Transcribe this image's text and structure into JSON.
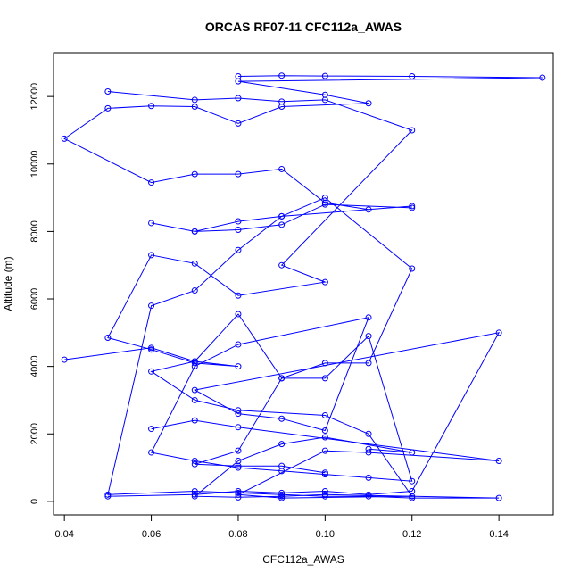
{
  "chart_data": {
    "type": "line",
    "title": "ORCAS RF07-11 CFC112a_AWAS",
    "xlabel": "CFC112a_AWAS",
    "ylabel": "Altitude (m)",
    "xlim": [
      0.0375,
      0.1525
    ],
    "ylim": [
      -400,
      13300
    ],
    "xticks": [
      0.04,
      0.06,
      0.08,
      0.1,
      0.12,
      0.14
    ],
    "xtick_labels": [
      "0.04",
      "0.06",
      "0.08",
      "0.10",
      "0.12",
      "0.14"
    ],
    "yticks": [
      0,
      2000,
      4000,
      6000,
      8000,
      10000,
      12000
    ],
    "ytick_labels": [
      "0",
      "2000",
      "4000",
      "6000",
      "8000",
      "10000",
      "12000"
    ],
    "grid": false,
    "legend": "none",
    "series_color": "#0000ff",
    "series": [
      {
        "x": [
          0.08,
          0.09,
          0.1,
          0.12,
          0.15,
          0.08,
          0.1,
          0.11,
          0.09,
          0.08,
          0.07,
          0.06,
          0.05,
          0.04,
          0.06,
          0.07,
          0.08,
          0.09,
          0.1,
          0.11,
          0.12,
          0.09,
          0.08,
          0.07,
          0.06,
          0.07,
          0.08,
          0.09,
          0.1,
          0.12
        ],
        "y": [
          12600,
          12620,
          12610,
          12600,
          12560,
          12450,
          12050,
          11800,
          11700,
          11200,
          11700,
          11720,
          11650,
          10750,
          9450,
          9700,
          9700,
          9850,
          8850,
          8650,
          8750,
          8450,
          8300,
          8000,
          8250,
          8000,
          8050,
          8200,
          8800,
          8700
        ]
      },
      {
        "x": [
          0.05,
          0.07,
          0.08,
          0.09,
          0.1,
          0.12,
          0.09,
          0.1,
          0.08,
          0.07,
          0.06,
          0.05,
          0.06,
          0.07,
          0.08,
          0.07,
          0.06,
          0.07,
          0.08,
          0.1,
          0.11,
          0.12,
          0.09,
          0.08,
          0.1,
          0.11,
          0.14,
          0.08,
          0.07,
          0.06
        ],
        "y": [
          12150,
          11900,
          11950,
          11850,
          11900,
          11000,
          7000,
          6500,
          6100,
          7050,
          7300,
          4850,
          4500,
          4100,
          4000,
          4150,
          3850,
          3000,
          2700,
          2550,
          2000,
          150,
          100,
          200,
          1500,
          1450,
          1200,
          2200,
          2400,
          2150
        ]
      },
      {
        "x": [
          0.04,
          0.06,
          0.07,
          0.08,
          0.09,
          0.1,
          0.11,
          0.12,
          0.1,
          0.09,
          0.08,
          0.07,
          0.06,
          0.05,
          0.07,
          0.08,
          0.09,
          0.1,
          0.11,
          0.12,
          0.14,
          0.1,
          0.09,
          0.08,
          0.07,
          0.08,
          0.09,
          0.1,
          0.12,
          0.11
        ],
        "y": [
          4200,
          4550,
          4150,
          5550,
          3650,
          4100,
          4100,
          6900,
          9000,
          8450,
          7450,
          6250,
          5800,
          200,
          300,
          250,
          200,
          150,
          150,
          100,
          100,
          200,
          150,
          120,
          150,
          1200,
          1700,
          1900,
          1450,
          1550
        ]
      },
      {
        "x": [
          0.05,
          0.07,
          0.08,
          0.09,
          0.1,
          0.11,
          0.12,
          0.14,
          0.07,
          0.08,
          0.09,
          0.1,
          0.11,
          0.08,
          0.07,
          0.06,
          0.07,
          0.08,
          0.09,
          0.1,
          0.11,
          0.12,
          0.11,
          0.1,
          0.09,
          0.08,
          0.07,
          0.08,
          0.09,
          0.1
        ],
        "y": [
          150,
          200,
          300,
          250,
          300,
          200,
          300,
          5000,
          3300,
          2600,
          2450,
          2100,
          5450,
          4650,
          4000,
          1450,
          1200,
          1000,
          900,
          800,
          700,
          600,
          4900,
          3650,
          3650,
          1500,
          1100,
          1050,
          1050,
          850
        ]
      }
    ]
  }
}
